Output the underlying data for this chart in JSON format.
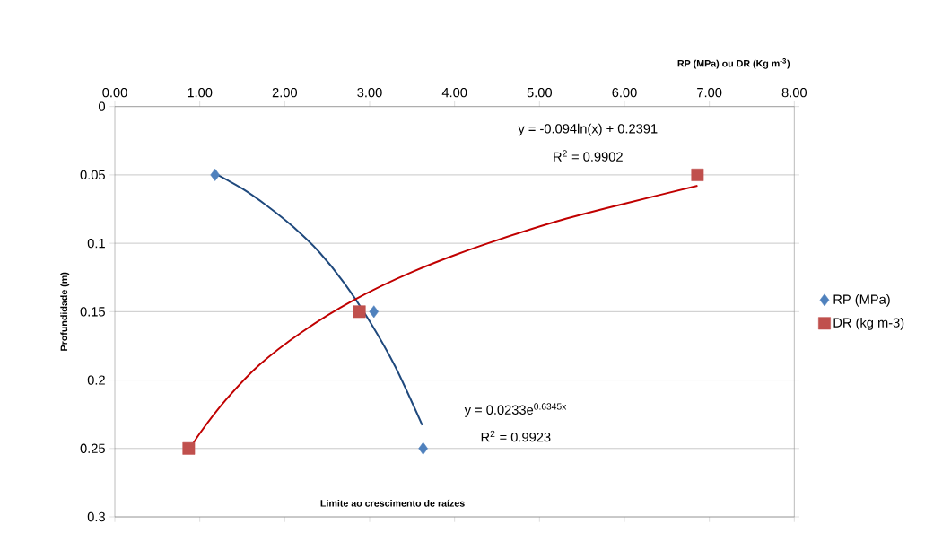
{
  "chart_data": {
    "type": "scatter",
    "xlabel": "RP (MPa) ou DR (Kg m$^{-3}$)",
    "ylabel": "Profundidade (m)",
    "xlim": [
      0,
      8
    ],
    "xticks": [
      {
        "value": 0,
        "label": "0.00"
      },
      {
        "value": 1,
        "label": "1.00"
      },
      {
        "value": 2,
        "label": "2.00"
      },
      {
        "value": 3,
        "label": "3.00"
      },
      {
        "value": 4,
        "label": "4.00"
      },
      {
        "value": 5,
        "label": "5.00"
      },
      {
        "value": 6,
        "label": "6.00"
      },
      {
        "value": 7,
        "label": "7.00"
      },
      {
        "value": 8,
        "label": "8.00"
      }
    ],
    "ylim": [
      0.3,
      0
    ],
    "yticks": [
      0,
      0.05,
      0.1,
      0.15,
      0.2,
      0.25,
      0.3
    ],
    "grid": "y",
    "legend": "right",
    "series": [
      {
        "name": "RP (MPa)",
        "marker": "diamond",
        "color": "#4f81bd",
        "x": [
          1.18,
          3.05,
          3.63
        ],
        "values": [
          0.05,
          0.15,
          0.25
        ]
      },
      {
        "name": "DR (kg m-3)",
        "marker": "square",
        "color": "#c0504d",
        "x": [
          6.86,
          2.88,
          0.87
        ],
        "values": [
          0.05,
          0.15,
          0.25
        ]
      },
      {
        "type": "line",
        "marker": "none",
        "color": "#1f497d",
        "x": [
          1.18,
          1.5,
          1.8,
          2.1,
          2.4,
          2.7,
          3.0,
          3.3,
          3.62
        ],
        "values": [
          0.049,
          0.06,
          0.073,
          0.088,
          0.106,
          0.129,
          0.157,
          0.19,
          0.233
        ]
      },
      {
        "type": "line",
        "marker": "none",
        "color": "#c00000",
        "x": [
          0.87,
          1.0,
          1.3,
          1.7,
          2.2,
          2.8,
          3.5,
          4.3,
          5.2,
          6.0,
          6.86
        ],
        "values": [
          0.252,
          0.239,
          0.215,
          0.189,
          0.165,
          0.142,
          0.121,
          0.102,
          0.084,
          0.071,
          0.058
        ]
      }
    ],
    "annotations": [
      "y = -0.094ln(x) + 0.2391",
      "R$^{2}$ = 0.9902",
      "y = 0.0233e$^{0.6345x}$",
      "R$^{2}$ = 0.9923",
      "Limite ao crescimento de raízes"
    ]
  }
}
